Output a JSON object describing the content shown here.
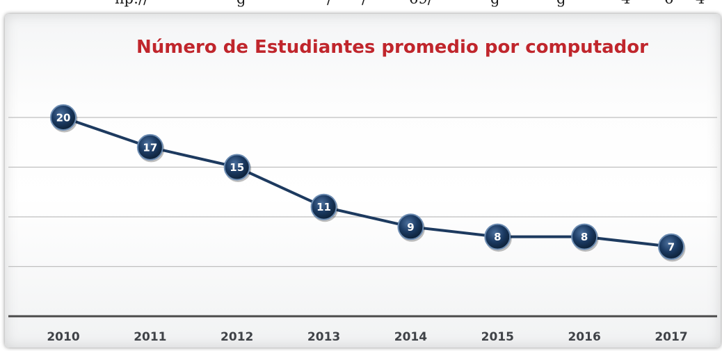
{
  "page": {
    "top_strip_fragments": [
      "np://",
      "g",
      "/",
      "/",
      "69/",
      "g",
      "g",
      "4",
      "6",
      "4"
    ]
  },
  "colors": {
    "title": "#c0262c",
    "line": "#1d3a5f",
    "marker_fill": "#142d4c",
    "marker_ring": "#6d8db3",
    "gridline": "#bfbfbf",
    "baseline": "#4a4a4a",
    "tick_label": "#3f4247"
  },
  "chart_data": {
    "type": "line",
    "title": "Número de Estudiantes promedio por computador",
    "xlabel": "",
    "ylabel": "",
    "categories": [
      "2010",
      "2011",
      "2012",
      "2013",
      "2014",
      "2015",
      "2016",
      "2017"
    ],
    "series": [
      {
        "values": [
          20,
          17,
          15,
          11,
          9,
          8,
          8,
          7
        ]
      }
    ],
    "data_labels": [
      "20",
      "17",
      "15",
      "11",
      "9",
      "8",
      "8",
      "7"
    ],
    "ylim": [
      0,
      25
    ],
    "gridlines": [
      5,
      10,
      15,
      20
    ],
    "grid": true,
    "legend": "none",
    "y_axis_labels_shown": false
  }
}
